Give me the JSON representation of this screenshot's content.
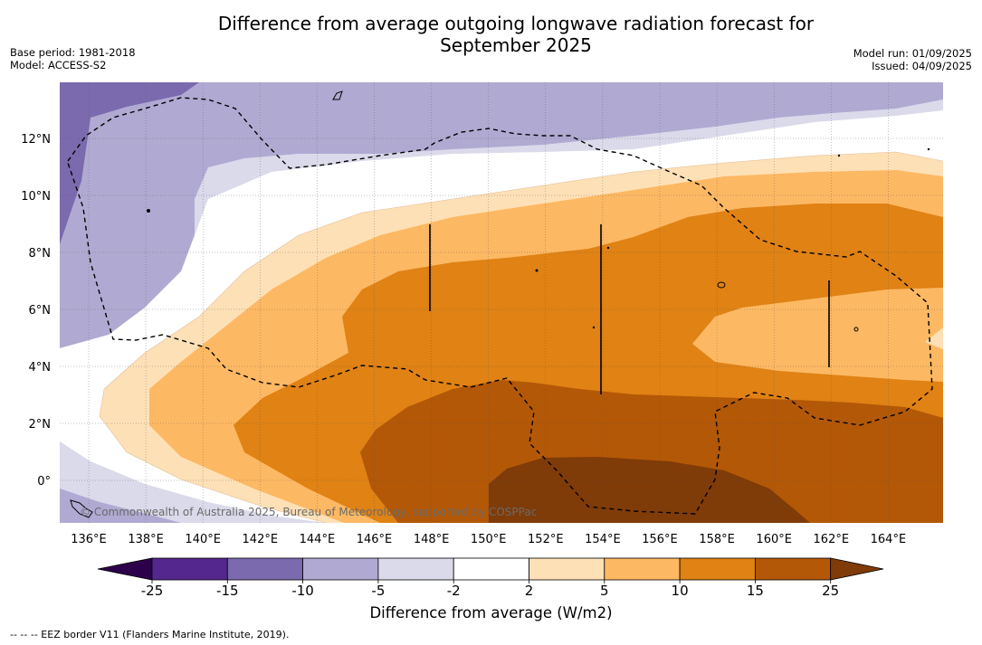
{
  "title_line1": "Difference from average outgoing longwave radiation forecast for",
  "title_line2": "September 2025",
  "base_period": "Base period: 1981-2018",
  "model": "Model: ACCESS-S2",
  "model_run": "Model run: 01/09/2025",
  "issued": "Issued: 04/09/2025",
  "copyright": "© Commonwealth of Australia 2025, Bureau of Meteorology, supported by COSPPac",
  "lat_labels": [
    "12°N",
    "10°N",
    "8°N",
    "6°N",
    "4°N",
    "2°N",
    "0°"
  ],
  "lon_labels": [
    "136°E",
    "138°E",
    "140°E",
    "142°E",
    "144°E",
    "146°E",
    "148°E",
    "150°E",
    "152°E",
    "154°E",
    "156°E",
    "158°E",
    "160°E",
    "162°E",
    "164°E"
  ],
  "colorbar": {
    "label": "Difference from average (W/m2)",
    "ticks": [
      "-25",
      "-15",
      "-10",
      "-5",
      "-2",
      "2",
      "5",
      "10",
      "15",
      "25"
    ],
    "colors": [
      "#54278f",
      "#7b6aad",
      "#b0aad2",
      "#dadaeb",
      "#ffffff",
      "#fee0b6",
      "#fdb863",
      "#e08214",
      "#b35806",
      "#7f3b08"
    ],
    "under_color": "#2d004b",
    "over_color": "#7f3b08"
  },
  "footnote": "--  --  -- EEZ border V11 (Flanders Marine Institute, 2019)."
}
